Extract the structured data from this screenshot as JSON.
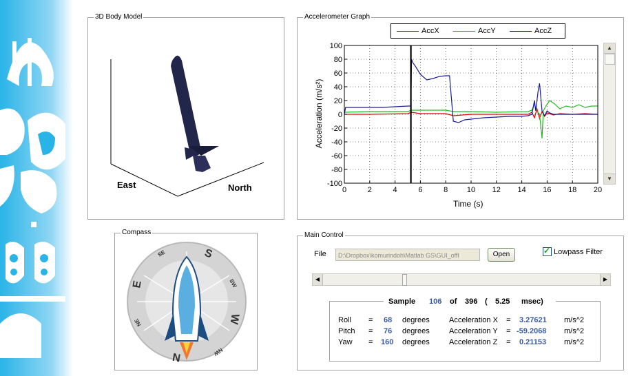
{
  "colors": {
    "accx": "#e00000",
    "accy": "#22bb22",
    "accz": "#1a1a9a",
    "rocket": "#22264a",
    "value": "#3a5aa0",
    "sidebar": "#29b4e8"
  },
  "body_model": {
    "title": "3D Body Model",
    "east_label": "East",
    "north_label": "North"
  },
  "accel_graph": {
    "title": "Accelerometer Graph",
    "ylabel": "Acceleration (m/s²)",
    "xlabel": "Time (s)",
    "cursor_time": 5.25
  },
  "compass": {
    "title": "Compass",
    "letters": {
      "s": "S",
      "sw": "SW",
      "w": "W",
      "nw": "NW",
      "n": "N",
      "ne": "NE",
      "e": "E",
      "se": "SE"
    }
  },
  "main_control": {
    "title": "Main Control",
    "file_label": "File",
    "file_path": "D:\\Dropbox\\komurindoh\\Matlab GS\\GUI_offl",
    "open_button": "Open",
    "lowpass_label": "Lowpass Filter",
    "lowpass_checked": true,
    "slider_position": 0.29,
    "sample": {
      "label": "Sample",
      "index": "106",
      "of_label": "of",
      "total": "396",
      "open_paren": "(",
      "time": "5.25",
      "unit": "msec)"
    },
    "roll": {
      "label": "Roll",
      "eq": "=",
      "value": "68",
      "unit": "degrees"
    },
    "pitch": {
      "label": "Pitch",
      "eq": "=",
      "value": "76",
      "unit": "degrees"
    },
    "yaw": {
      "label": "Yaw",
      "eq": "=",
      "value": "160",
      "unit": "degrees"
    },
    "acc_x": {
      "label": "Acceleration X",
      "eq": "=",
      "value": "3.27621",
      "unit": "m/s^2"
    },
    "acc_y": {
      "label": "Acceleration Y",
      "eq": "=",
      "value": "-59.2068",
      "unit": "m/s^2"
    },
    "acc_z": {
      "label": "Acceleration Z",
      "eq": "=",
      "value": "0.21153",
      "unit": "m/s^2"
    }
  },
  "chart_data": {
    "type": "line",
    "xlabel": "Time (s)",
    "ylabel": "Acceleration (m/s²)",
    "xlim": [
      0,
      20
    ],
    "ylim": [
      -100,
      100
    ],
    "xticks": [
      0,
      2,
      4,
      6,
      8,
      10,
      12,
      14,
      16,
      18,
      20
    ],
    "yticks": [
      100,
      80,
      60,
      40,
      20,
      0,
      -20,
      -40,
      -60,
      -80,
      -100
    ],
    "grid": true,
    "legend_position": "top",
    "cursor_x": 5.25,
    "series": [
      {
        "name": "AccX",
        "color": "#e00000",
        "x": [
          0,
          2,
          5,
          5.3,
          6,
          8,
          8.6,
          10,
          14.5,
          14.8,
          15,
          15.2,
          15.4,
          15.6,
          15.8,
          16,
          16.5,
          17,
          18,
          19,
          20
        ],
        "y": [
          0,
          0,
          1,
          3,
          1,
          1,
          -2,
          0,
          0,
          3,
          -5,
          8,
          -6,
          4,
          -3,
          2,
          -1,
          1,
          0,
          1,
          0
        ]
      },
      {
        "name": "AccY",
        "color": "#22bb22",
        "x": [
          0,
          2,
          5,
          5.3,
          8,
          8.6,
          10,
          12,
          14.5,
          14.8,
          15,
          15.2,
          15.4,
          15.6,
          15.7,
          15.9,
          16.2,
          16.6,
          17,
          17.5,
          18,
          18.5,
          19,
          19.5,
          20
        ],
        "y": [
          3,
          4,
          4,
          6,
          6,
          4,
          4,
          3,
          4,
          6,
          15,
          5,
          0,
          -35,
          5,
          12,
          20,
          15,
          8,
          12,
          10,
          14,
          10,
          12,
          12
        ]
      },
      {
        "name": "AccZ",
        "color": "#1a1a9a",
        "x": [
          0,
          0.1,
          0.3,
          3,
          5,
          5.25,
          5.3,
          5.4,
          5.6,
          6,
          6.5,
          7,
          7.5,
          8,
          8.3,
          8.6,
          9,
          9.5,
          10,
          11,
          12,
          13,
          14,
          14.5,
          14.8,
          14.9,
          15,
          15.1,
          15.3,
          15.4,
          15.5,
          15.6,
          15.8,
          16,
          16.2,
          16.5,
          17,
          18,
          19,
          20
        ],
        "y": [
          0,
          10,
          10,
          10,
          12,
          12,
          80,
          75,
          70,
          58,
          50,
          52,
          55,
          56,
          56,
          -10,
          -12,
          -8,
          -7,
          -5,
          -4,
          -3,
          -3,
          -2,
          0,
          10,
          20,
          5,
          35,
          45,
          25,
          5,
          -2,
          5,
          2,
          0,
          0,
          0,
          0,
          0
        ]
      }
    ]
  }
}
